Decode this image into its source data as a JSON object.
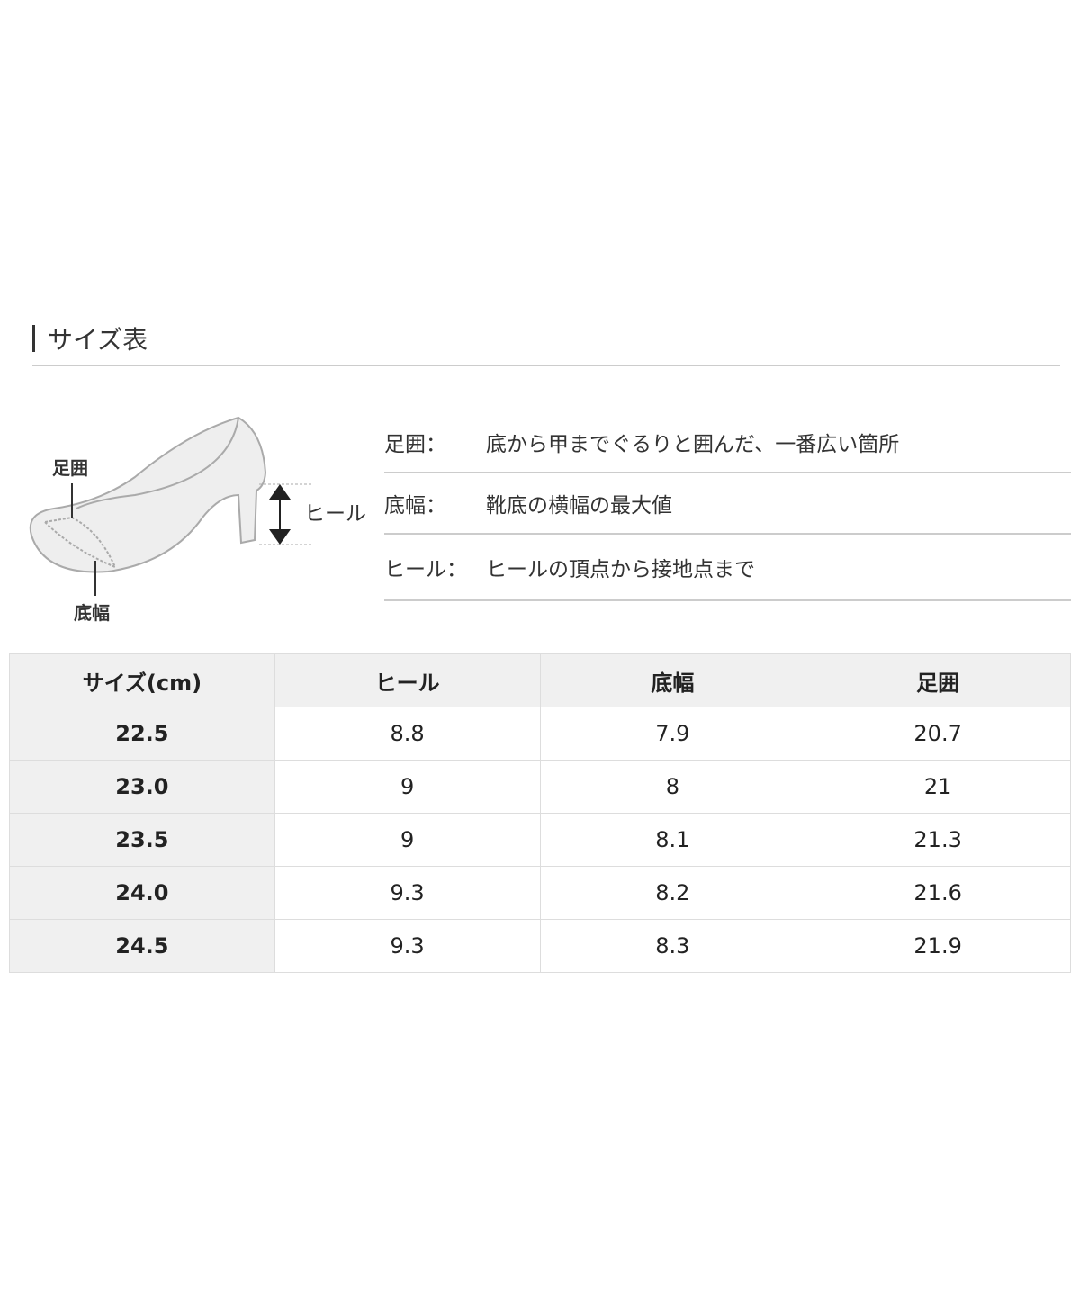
{
  "title": "サイズ表",
  "diagram": {
    "label_girth": "足囲",
    "label_width": "底幅",
    "label_heel": "ヒール"
  },
  "definitions": [
    {
      "term": "足囲：",
      "desc": "底から甲までぐるりと囲んだ、一番広い箇所"
    },
    {
      "term": "底幅：",
      "desc": "靴底の横幅の最大値"
    },
    {
      "term": "ヒール：",
      "desc": "ヒールの頂点から接地点まで"
    }
  ],
  "table": {
    "headers": [
      "サイズ(cm)",
      "ヒール",
      "底幅",
      "足囲"
    ],
    "rows": [
      [
        "22.5",
        "8.8",
        "7.9",
        "20.7"
      ],
      [
        "23.0",
        "9",
        "8",
        "21"
      ],
      [
        "23.5",
        "9",
        "8.1",
        "21.3"
      ],
      [
        "24.0",
        "9.3",
        "8.2",
        "21.6"
      ],
      [
        "24.5",
        "9.3",
        "8.3",
        "21.9"
      ]
    ]
  }
}
